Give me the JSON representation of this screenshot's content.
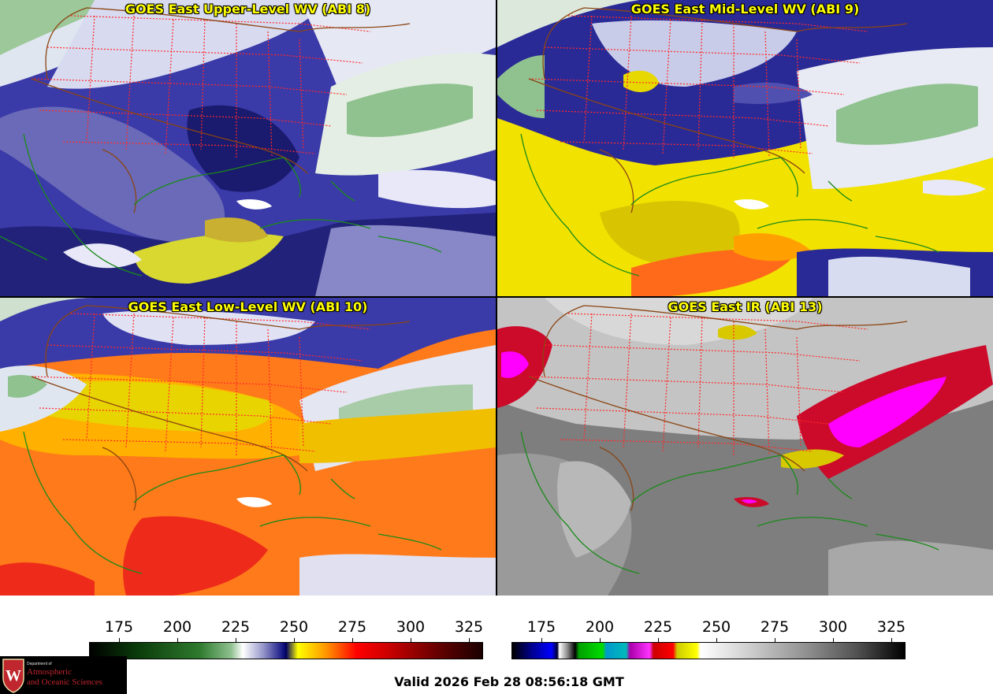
{
  "panels": [
    {
      "title": "GOES East Upper-Level WV (ABI 8)"
    },
    {
      "title": "GOES East Mid-Level WV (ABI 9)"
    },
    {
      "title": "GOES East Low-Level WV (ABI 10)"
    },
    {
      "title": "GOES East IR (ABI 13)"
    }
  ],
  "colorbars": {
    "wv": {
      "ticks": [
        "175",
        "200",
        "225",
        "250",
        "275",
        "300",
        "325"
      ]
    },
    "ir": {
      "ticks": [
        "175",
        "200",
        "225",
        "250",
        "275",
        "300",
        "325"
      ]
    }
  },
  "valid_time": "Valid 2026 Feb 28 08:56:18 GMT",
  "logo": {
    "department": "Department of",
    "line1": "Atmospheric",
    "line2": "and Oceanic Sciences",
    "crest_letter": "W"
  },
  "colors": {
    "state_borders": "#ff2a2a",
    "coastlines": "#1a8a1a",
    "country_borders": "#8b4513",
    "title_text": "#ffff00"
  }
}
